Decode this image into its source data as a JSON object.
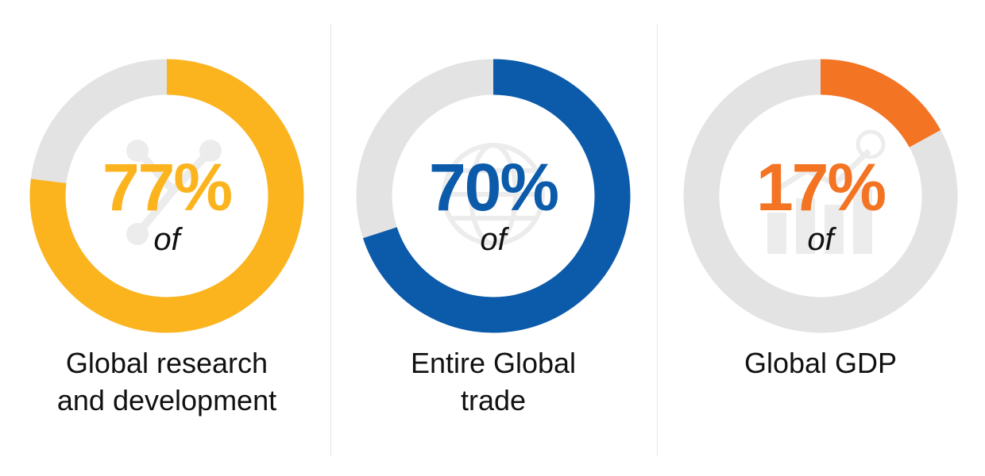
{
  "chart_data": [
    {
      "type": "pie",
      "value": 77,
      "percent_label": "77%",
      "sub_label": "of",
      "caption_lines": [
        "Global research",
        "and development"
      ],
      "color": "#FBB41E",
      "track_color": "#E3E3E3",
      "icon": "molecule-icon"
    },
    {
      "type": "pie",
      "value": 70,
      "percent_label": "70%",
      "sub_label": "of",
      "caption_lines": [
        "Entire Global",
        "trade"
      ],
      "color": "#0B5BAA",
      "track_color": "#E3E3E3",
      "icon": "globe-icon"
    },
    {
      "type": "pie",
      "value": 17,
      "percent_label": "17%",
      "sub_label": "of",
      "caption_lines": [
        "Global GDP"
      ],
      "color": "#F37423",
      "track_color": "#E3E3E3",
      "icon": "growth-chart-icon"
    }
  ]
}
